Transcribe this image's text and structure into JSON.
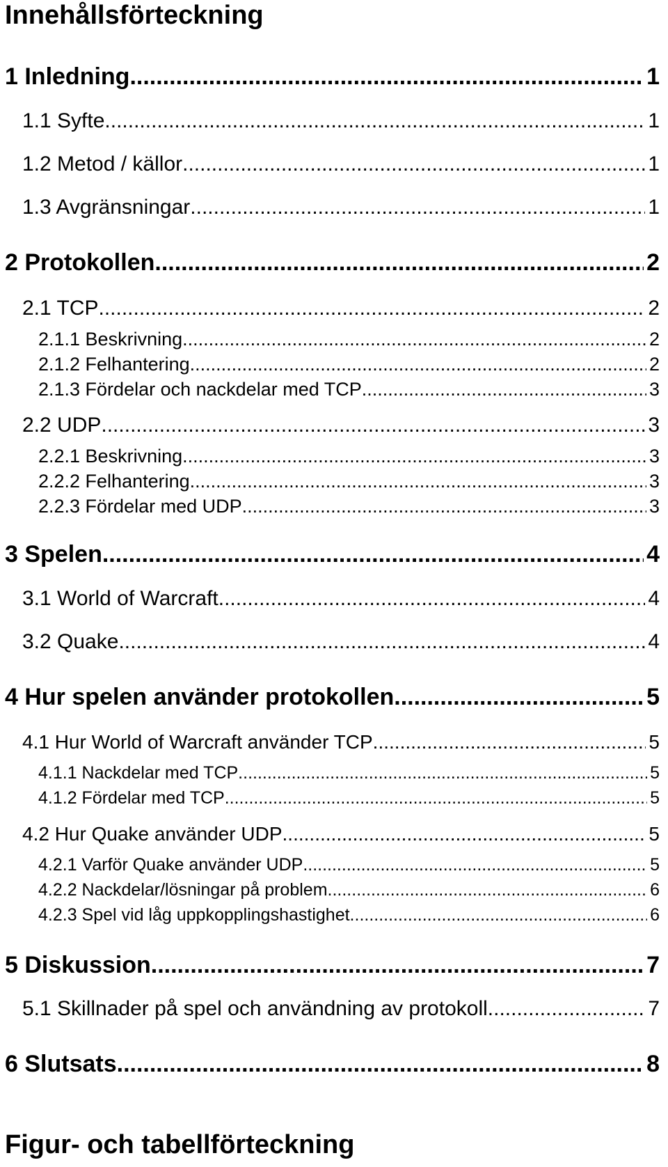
{
  "document": {
    "toc_heading": "Innehållsförteckning",
    "figures_heading": "Figur- och tabellförteckning"
  },
  "toc": [
    {
      "label": "1 Inledning",
      "page": "1"
    },
    {
      "label": "1.1 Syfte",
      "page": "1"
    },
    {
      "label": "1.2 Metod / källor",
      "page": "1"
    },
    {
      "label": "1.3 Avgränsningar",
      "page": "1"
    },
    {
      "label": "2 Protokollen",
      "page": "2"
    },
    {
      "label": "2.1 TCP",
      "page": "2"
    },
    {
      "label": "2.1.1 Beskrivning",
      "page": "2"
    },
    {
      "label": "2.1.2 Felhantering",
      "page": "2"
    },
    {
      "label": "2.1.3 Fördelar och nackdelar med TCP",
      "page": "3"
    },
    {
      "label": "2.2 UDP",
      "page": "3"
    },
    {
      "label": "2.2.1 Beskrivning",
      "page": "3"
    },
    {
      "label": "2.2.2 Felhantering",
      "page": "3"
    },
    {
      "label": "2.2.3 Fördelar med UDP",
      "page": "3"
    },
    {
      "label": "3 Spelen",
      "page": "4"
    },
    {
      "label": "3.1 World of Warcraft",
      "page": "4"
    },
    {
      "label": "3.2 Quake",
      "page": "4"
    },
    {
      "label": "4 Hur spelen använder protokollen",
      "page": "5"
    },
    {
      "label": "4.1 Hur World of Warcraft använder TCP",
      "page": "5"
    },
    {
      "label": "4.1.1 Nackdelar med TCP",
      "page": "5"
    },
    {
      "label": "4.1.2 Fördelar med TCP",
      "page": "5"
    },
    {
      "label": "4.2 Hur Quake använder UDP",
      "page": "5"
    },
    {
      "label": "4.2.1 Varför Quake använder UDP",
      "page": "5"
    },
    {
      "label": "4.2.2 Nackdelar/lösningar på problem",
      "page": "6"
    },
    {
      "label": "4.2.3 Spel vid låg uppkopplingshastighet",
      "page": "6"
    },
    {
      "label": "5 Diskussion",
      "page": "7"
    },
    {
      "label": "5.1 Skillnader på spel och användning av protokoll",
      "page": "7"
    },
    {
      "label": "6 Slutsats",
      "page": "8"
    }
  ]
}
